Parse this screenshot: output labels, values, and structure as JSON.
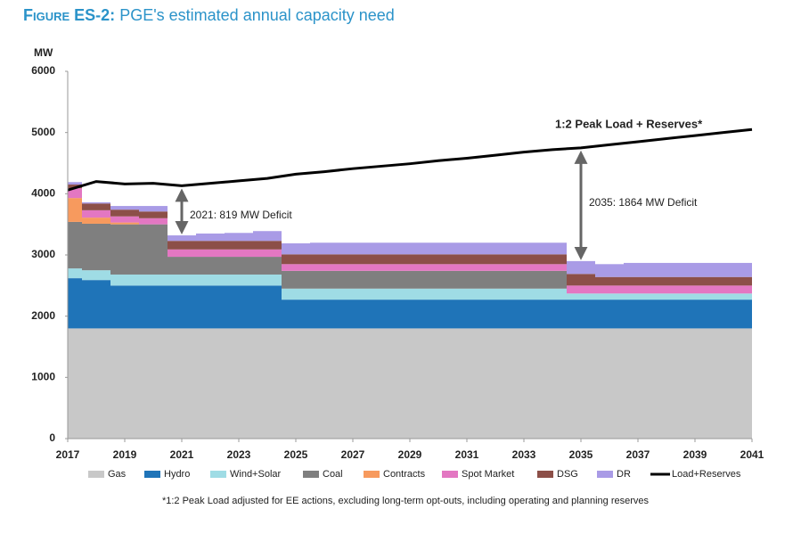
{
  "chart_data": {
    "type": "area",
    "stacked": true,
    "title_prefix": "Figure ES-2:",
    "title": "PGE's estimated annual capacity need",
    "y_label": "MW",
    "x": [
      2017,
      2018,
      2019,
      2020,
      2021,
      2022,
      2023,
      2024,
      2025,
      2026,
      2027,
      2028,
      2029,
      2030,
      2031,
      2032,
      2033,
      2034,
      2035,
      2036,
      2037,
      2038,
      2039,
      2040,
      2041
    ],
    "xlim": [
      2017,
      2041
    ],
    "xticks": [
      2017,
      2019,
      2021,
      2023,
      2025,
      2027,
      2029,
      2031,
      2033,
      2035,
      2037,
      2039,
      2041
    ],
    "ylim": [
      0,
      6000
    ],
    "yticks": [
      0,
      1000,
      2000,
      3000,
      4000,
      5000,
      6000
    ],
    "series": [
      {
        "name": "Gas",
        "color": "#c8c8c8",
        "values": [
          1800,
          1800,
          1800,
          1800,
          1800,
          1800,
          1800,
          1800,
          1800,
          1800,
          1800,
          1800,
          1800,
          1800,
          1800,
          1800,
          1800,
          1800,
          1800,
          1800,
          1800,
          1800,
          1800,
          1800,
          1800
        ]
      },
      {
        "name": "Hydro",
        "color": "#1f74b8",
        "values": [
          820,
          790,
          700,
          700,
          700,
          700,
          700,
          700,
          470,
          470,
          470,
          470,
          470,
          470,
          470,
          470,
          470,
          470,
          470,
          470,
          470,
          470,
          470,
          470,
          470
        ]
      },
      {
        "name": "Wind+Solar",
        "color": "#9fdce5",
        "values": [
          160,
          160,
          180,
          180,
          180,
          180,
          180,
          180,
          180,
          180,
          180,
          180,
          180,
          180,
          180,
          180,
          180,
          180,
          100,
          100,
          100,
          100,
          100,
          100,
          100
        ]
      },
      {
        "name": "Coal",
        "color": "#7f7f7f",
        "values": [
          760,
          760,
          820,
          820,
          290,
          290,
          290,
          290,
          290,
          290,
          290,
          290,
          290,
          290,
          290,
          290,
          290,
          290,
          0,
          0,
          0,
          0,
          0,
          0,
          0
        ]
      },
      {
        "name": "Contracts",
        "color": "#f79a5e",
        "values": [
          390,
          100,
          30,
          0,
          0,
          0,
          0,
          0,
          0,
          0,
          0,
          0,
          0,
          0,
          0,
          0,
          0,
          0,
          0,
          0,
          0,
          0,
          0,
          0,
          0
        ]
      },
      {
        "name": "Spot Market",
        "color": "#e377c2",
        "values": [
          160,
          120,
          100,
          100,
          120,
          120,
          120,
          120,
          110,
          110,
          110,
          110,
          110,
          110,
          110,
          110,
          110,
          110,
          130,
          130,
          130,
          130,
          130,
          130,
          130
        ]
      },
      {
        "name": "DSG",
        "color": "#8c4f48",
        "values": [
          60,
          110,
          110,
          110,
          140,
          140,
          140,
          140,
          160,
          160,
          160,
          160,
          160,
          160,
          160,
          160,
          160,
          160,
          190,
          140,
          140,
          140,
          140,
          140,
          140
        ]
      },
      {
        "name": "DR",
        "color": "#a99be6",
        "values": [
          40,
          20,
          60,
          90,
          90,
          120,
          130,
          160,
          180,
          190,
          190,
          190,
          190,
          190,
          190,
          190,
          190,
          190,
          210,
          210,
          230,
          230,
          230,
          230,
          230
        ]
      },
      {
        "name": "Load+Reserves",
        "color": "#000000",
        "type": "line",
        "values": [
          4060,
          4200,
          4160,
          4170,
          4130,
          4170,
          4210,
          4250,
          4320,
          4360,
          4410,
          4450,
          4490,
          4540,
          4580,
          4630,
          4680,
          4720,
          4750,
          4800,
          4850,
          4900,
          4950,
          5000,
          5050
        ]
      }
    ],
    "annotations": [
      {
        "text": "1:2 Peak Load + Reserves*"
      },
      {
        "text": "2021: 819 MW Deficit",
        "x": 2021
      },
      {
        "text": "2035: 1864 MW Deficit",
        "x": 2035
      }
    ],
    "footnote": "*1:2 Peak Load adjusted for EE actions, excluding long-term opt-outs, including operating and planning reserves"
  }
}
